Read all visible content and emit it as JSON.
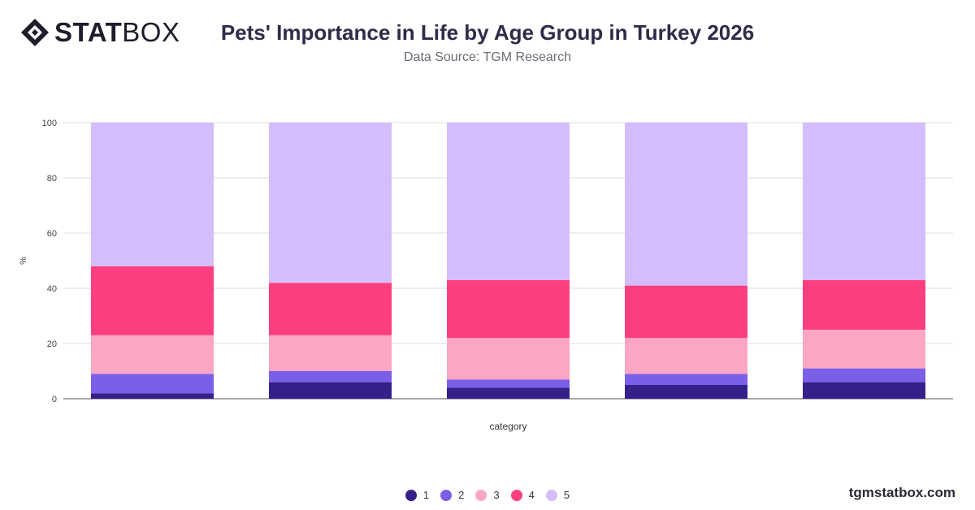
{
  "header": {
    "logo_bold": "STAT",
    "logo_light": "BOX",
    "title": "Pets' Importance in Life by Age Group in Turkey 2026",
    "subtitle": "Data Source: TGM Research"
  },
  "footer": {
    "watermark": "tgmstatbox.com"
  },
  "chart_data": {
    "type": "bar",
    "stacked": true,
    "title": "Pets' Importance in Life by Age Group in Turkey 2026",
    "subtitle": "Data Source: TGM Research",
    "xlabel": "category",
    "ylabel": "%",
    "ylim": [
      0,
      100
    ],
    "yticks": [
      0,
      20,
      40,
      60,
      80,
      100
    ],
    "grid": true,
    "legend_position": "bottom",
    "categories": [
      "",
      "",
      "",
      "",
      ""
    ],
    "series": [
      {
        "name": "1",
        "color": "#35208a",
        "values": [
          2,
          6,
          4,
          5,
          6
        ]
      },
      {
        "name": "2",
        "color": "#7b5fe8",
        "values": [
          7,
          4,
          3,
          4,
          5
        ]
      },
      {
        "name": "3",
        "color": "#fba6c4",
        "values": [
          14,
          13,
          15,
          13,
          14
        ]
      },
      {
        "name": "4",
        "color": "#fd3f7f",
        "values": [
          25,
          19,
          21,
          19,
          18
        ]
      },
      {
        "name": "5",
        "color": "#d4bdfb",
        "values": [
          52,
          58,
          57,
          59,
          57
        ]
      }
    ]
  }
}
